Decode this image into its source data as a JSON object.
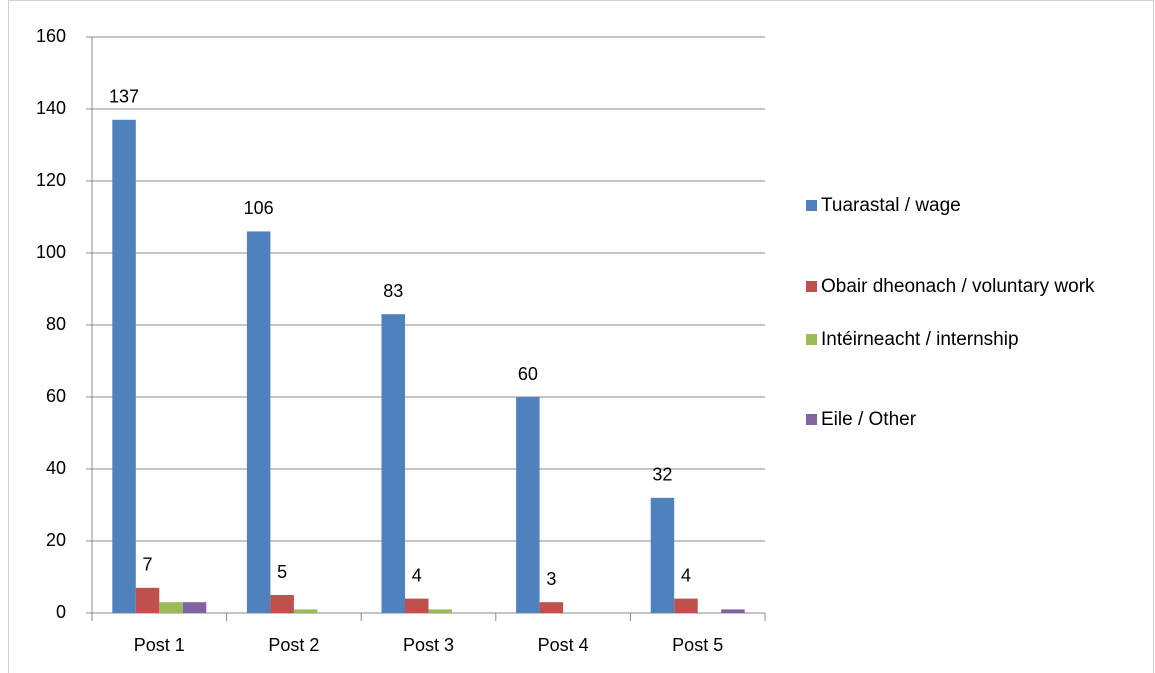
{
  "chart_data": {
    "type": "bar",
    "categories": [
      "Post 1",
      "Post 2",
      "Post 3",
      "Post 4",
      "Post 5"
    ],
    "series": [
      {
        "name": "Tuarastal / wage",
        "color": "#4f81bd",
        "values": [
          137,
          106,
          83,
          60,
          32
        ],
        "show_labels": true
      },
      {
        "name": "Obair dheonach / voluntary work",
        "color": "#c0504d",
        "values": [
          7,
          5,
          4,
          3,
          4
        ],
        "show_labels": true
      },
      {
        "name": "Intéirneacht / internship",
        "color": "#9bbb59",
        "values": [
          3,
          1,
          1,
          0,
          0
        ],
        "show_labels": false
      },
      {
        "name": "Eile / Other",
        "color": "#8064a2",
        "values": [
          3,
          0,
          0,
          0,
          1
        ],
        "show_labels": false
      }
    ],
    "ylim": [
      0,
      160
    ],
    "yticks": [
      0,
      20,
      40,
      60,
      80,
      100,
      120,
      140,
      160
    ],
    "grid": true,
    "legend": "right"
  }
}
